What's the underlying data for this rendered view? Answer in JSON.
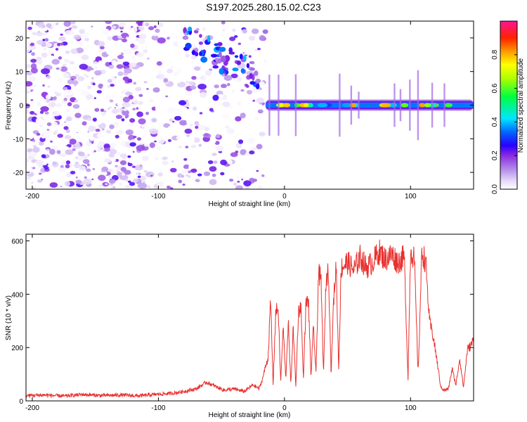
{
  "title": "S197.2025.280.15.02.C23",
  "chart_data": [
    {
      "type": "heatmap",
      "xlabel": "Height of straight line (km)",
      "ylabel": "Frequency (Hz)",
      "xlim": [
        -205,
        150
      ],
      "ylim": [
        -25,
        25
      ],
      "xticks": [
        -200,
        -100,
        0,
        100
      ],
      "yticks": [
        -20,
        -10,
        0,
        10,
        20
      ],
      "colorbar": {
        "label": "Normalized spectral amplitude",
        "range": [
          0,
          1
        ],
        "ticks": [
          0.0,
          0.2,
          0.4,
          0.6,
          0.8
        ],
        "tick_labels": [
          "0.0",
          "0.2",
          "0.4",
          "0.6",
          "0.8"
        ],
        "colors": [
          "#ffffff",
          "#c9b2f2",
          "#8a2be2",
          "#0000ff",
          "#00ffff",
          "#00ff00",
          "#ffff00",
          "#ff8c00",
          "#ff0000",
          "#ff1493"
        ]
      },
      "features": [
        {
          "name": "noise region",
          "x_range": [
            -205,
            -15
          ],
          "y_range": [
            -25,
            25
          ],
          "amplitude": [
            0.0,
            0.25
          ]
        },
        {
          "name": "carrier line",
          "x_range": [
            -15,
            150
          ],
          "y": 0,
          "amplitude": [
            0.2,
            0.85
          ]
        },
        {
          "name": "chirp segment",
          "x_range": [
            -80,
            -20
          ],
          "y_range": [
            5,
            22
          ],
          "amplitude": [
            0.1,
            0.4
          ]
        }
      ]
    },
    {
      "type": "line",
      "xlabel": "Height of straight line (km)",
      "ylabel": "SNR (10 * v/v)",
      "xlim": [
        -205,
        150
      ],
      "ylim": [
        0,
        625
      ],
      "xticks": [
        -200,
        -100,
        0,
        100
      ],
      "yticks": [
        0,
        200,
        400,
        600
      ],
      "color": "#e8322f",
      "series": [
        {
          "x": [
            -205,
            -190,
            -175,
            -160,
            -145,
            -130,
            -115,
            -100,
            -90,
            -80,
            -70,
            -62,
            -55,
            -48,
            -40,
            -32,
            -25,
            -20,
            -17,
            -15,
            -13,
            -11,
            -9,
            -7,
            -5,
            -3,
            -1,
            1,
            3,
            5,
            7,
            9,
            11,
            13,
            15,
            17,
            19,
            21,
            23,
            25,
            27,
            29,
            31,
            33,
            35,
            37,
            39,
            41,
            43,
            45,
            50,
            55,
            60,
            65,
            70,
            75,
            80,
            85,
            90,
            95,
            98,
            100,
            103,
            106,
            109,
            112,
            115,
            118,
            121,
            124,
            127,
            130,
            133,
            136,
            139,
            142,
            145,
            148,
            150
          ],
          "y": [
            20,
            22,
            18,
            24,
            20,
            22,
            19,
            25,
            28,
            35,
            45,
            70,
            55,
            40,
            45,
            35,
            60,
            45,
            90,
            130,
            160,
            375,
            60,
            330,
            350,
            70,
            280,
            80,
            300,
            60,
            280,
            50,
            330,
            360,
            80,
            360,
            380,
            90,
            280,
            100,
            480,
            450,
            100,
            460,
            490,
            100,
            380,
            510,
            120,
            500,
            520,
            490,
            540,
            500,
            520,
            560,
            530,
            550,
            520,
            540,
            80,
            570,
            530,
            100,
            560,
            520,
            300,
            240,
            150,
            50,
            40,
            45,
            120,
            60,
            160,
            50,
            190,
            210,
            230
          ]
        }
      ]
    }
  ]
}
